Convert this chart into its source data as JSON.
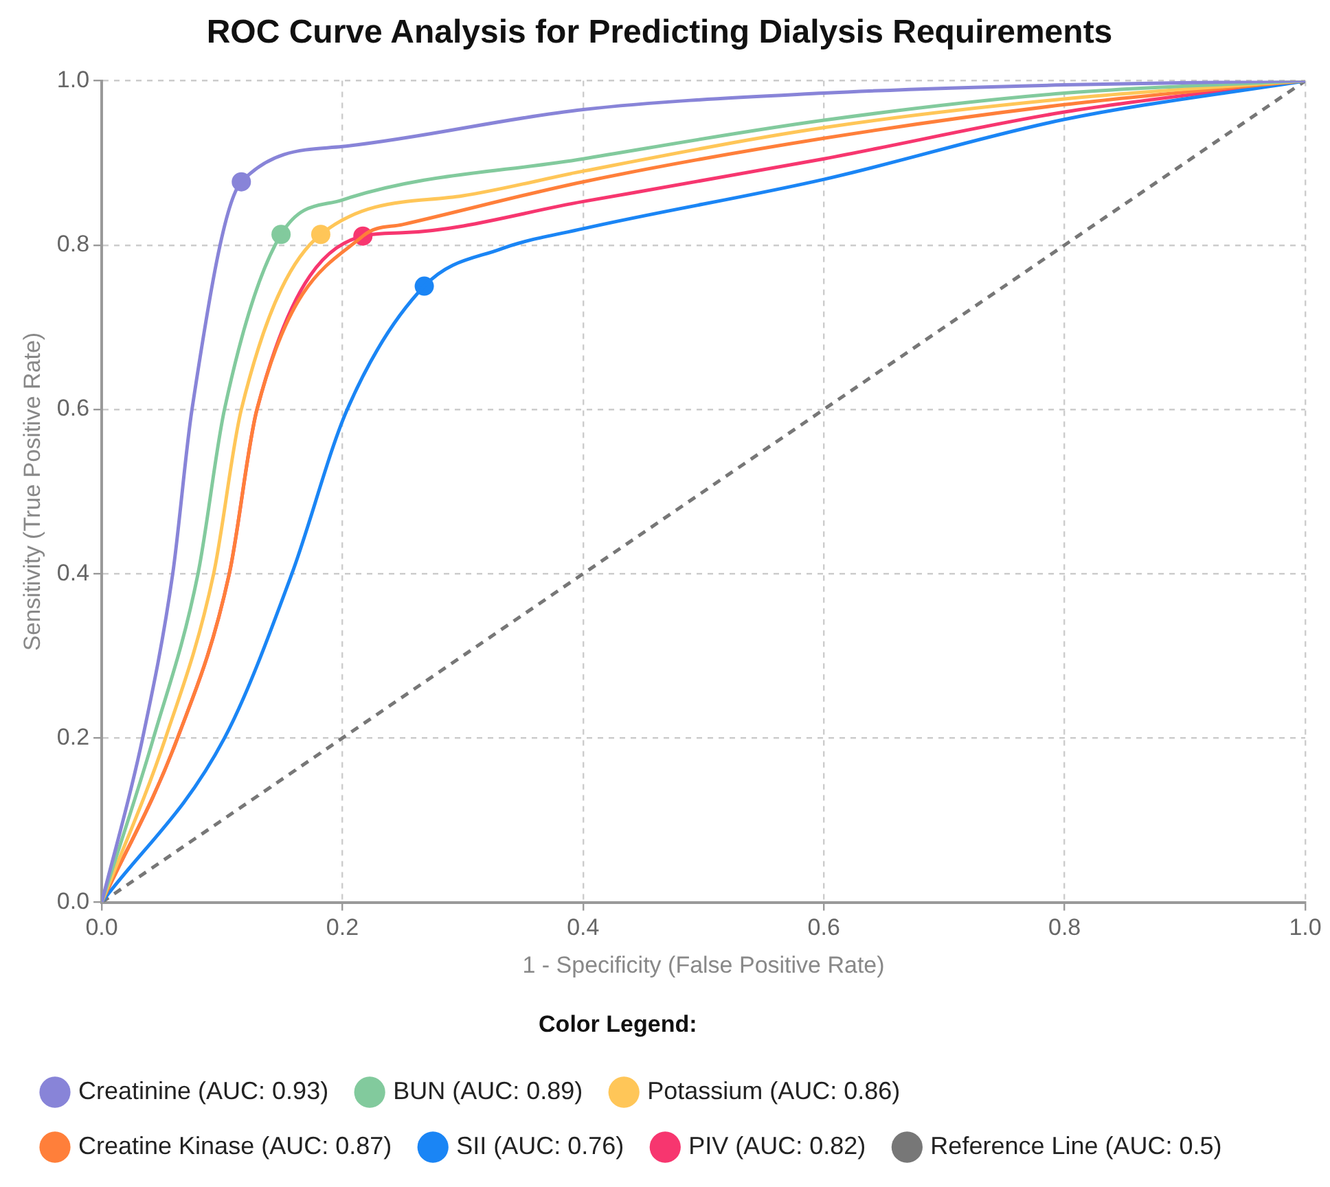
{
  "chart_data": {
    "type": "line",
    "title": "ROC Curve Analysis for Predicting Dialysis Requirements",
    "xlabel": "1 - Specificity (False Positive Rate)",
    "ylabel": "Sensitivity (True Positive Rate)",
    "legend_title": "Color Legend:",
    "xlim": [
      0,
      1
    ],
    "ylim": [
      0,
      1
    ],
    "xticks": [
      {
        "value": 0,
        "label": "0.0"
      },
      {
        "value": 0.2,
        "label": "0.2"
      },
      {
        "value": 0.4,
        "label": "0.4"
      },
      {
        "value": 0.6,
        "label": "0.6"
      },
      {
        "value": 0.8,
        "label": "0.8"
      },
      {
        "value": 1,
        "label": "1.0"
      }
    ],
    "yticks": [
      {
        "value": 0,
        "label": "0.0"
      },
      {
        "value": 0.2,
        "label": "0.2"
      },
      {
        "value": 0.4,
        "label": "0.4"
      },
      {
        "value": 0.6,
        "label": "0.6"
      },
      {
        "value": 0.8,
        "label": "0.8"
      },
      {
        "value": 1,
        "label": "1.0"
      }
    ],
    "grid": true,
    "legend": "bottom",
    "series": [
      {
        "name": "Creatinine (AUC: 0.93)",
        "type": "line",
        "marker": "none",
        "color": "#8884d8",
        "x": [
          0,
          0.034,
          0.059,
          0.075,
          0.116,
          0.2,
          0.4,
          0.6,
          0.8,
          1
        ],
        "values": [
          0,
          0.2,
          0.4,
          0.6,
          0.877,
          0.92,
          0.965,
          0.985,
          0.995,
          1
        ]
      },
      {
        "name": "BUN (AUC: 0.89)",
        "type": "line",
        "marker": "none",
        "color": "#82ca9d",
        "x": [
          0,
          0.043,
          0.08,
          0.102,
          0.149,
          0.2,
          0.4,
          0.6,
          0.8,
          1
        ],
        "values": [
          0,
          0.2,
          0.4,
          0.6,
          0.813,
          0.855,
          0.905,
          0.952,
          0.985,
          1
        ]
      },
      {
        "name": "Potassium (AUC: 0.86)",
        "type": "line",
        "marker": "none",
        "color": "#ffc658",
        "x": [
          0,
          0.053,
          0.093,
          0.116,
          0.182,
          0.3,
          0.4,
          0.6,
          0.8,
          1
        ],
        "values": [
          0,
          0.2,
          0.4,
          0.6,
          0.813,
          0.86,
          0.89,
          0.943,
          0.978,
          1
        ]
      },
      {
        "name": "Creatine Kinase (AUC: 0.87)",
        "type": "line",
        "marker": "none",
        "color": "#ff7f3a",
        "x": [
          0,
          0.063,
          0.106,
          0.129,
          0.217,
          0.25,
          0.4,
          0.6,
          0.8,
          1
        ],
        "values": [
          0,
          0.2,
          0.4,
          0.6,
          0.811,
          0.825,
          0.877,
          0.93,
          0.971,
          1
        ]
      },
      {
        "name": "SII (AUC: 0.76)",
        "type": "line",
        "marker": "none",
        "color": "#1a85f5",
        "x": [
          0,
          0.102,
          0.158,
          0.204,
          0.268,
          0.331,
          0.4,
          0.6,
          0.8,
          1
        ],
        "values": [
          0,
          0.2,
          0.4,
          0.6,
          0.75,
          0.795,
          0.82,
          0.88,
          0.953,
          1
        ]
      },
      {
        "name": "PIV (AUC: 0.82)",
        "type": "line",
        "marker": "none",
        "color": "#f7366f",
        "x": [
          0,
          0.063,
          0.106,
          0.129,
          0.217,
          0.25,
          0.4,
          0.6,
          0.8,
          1
        ],
        "values": [
          0,
          0.2,
          0.4,
          0.6,
          0.811,
          0.815,
          0.853,
          0.905,
          0.962,
          1
        ]
      },
      {
        "name": "Reference Line (AUC: 0.5)",
        "type": "line",
        "marker": "none",
        "line_style": "dashed",
        "color": "#777777",
        "x": [
          0,
          1
        ],
        "values": [
          0,
          1
        ]
      },
      {
        "type": "scatter",
        "marker": "circle",
        "color": "#8884d8",
        "x": [
          0.116
        ],
        "values": [
          0.877
        ]
      },
      {
        "type": "scatter",
        "marker": "circle",
        "color": "#82ca9d",
        "x": [
          0.149
        ],
        "values": [
          0.813
        ]
      },
      {
        "type": "scatter",
        "marker": "circle",
        "color": "#ffc658",
        "x": [
          0.182
        ],
        "values": [
          0.813
        ]
      },
      {
        "type": "scatter",
        "marker": "circle",
        "color": "#1a85f5",
        "x": [
          0.268
        ],
        "values": [
          0.75
        ]
      },
      {
        "type": "scatter",
        "marker": "circle",
        "color": "#f7366f",
        "x": [
          0.217
        ],
        "values": [
          0.811
        ]
      }
    ]
  }
}
